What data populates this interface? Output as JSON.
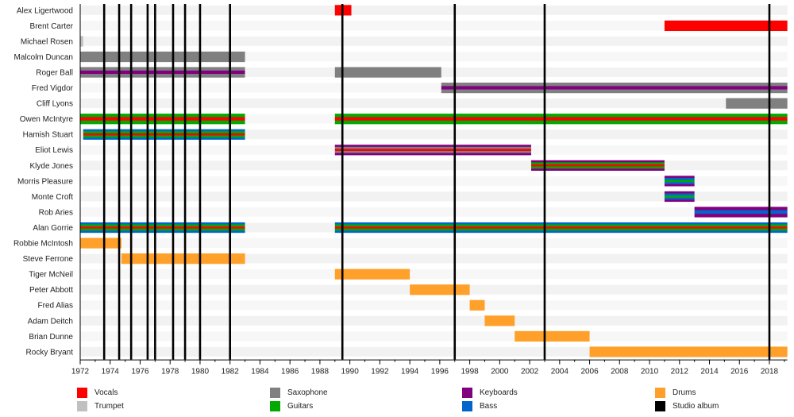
{
  "chart_data": {
    "type": "timeline",
    "title": "",
    "xlabel": "",
    "ylabel": "",
    "xlim": [
      1972,
      2019.2
    ],
    "grid": "alternating row shading",
    "x_ticks": [
      "1972",
      "1974",
      "1976",
      "1978",
      "1980",
      "1982",
      "1984",
      "1986",
      "1988",
      "1990",
      "1992",
      "1994",
      "1996",
      "1998",
      "2000",
      "2002",
      "2004",
      "2006",
      "2008",
      "2010",
      "2012",
      "2014",
      "2016",
      "2018"
    ],
    "x_tick_values": [
      1972,
      1974,
      1976,
      1978,
      1980,
      1982,
      1984,
      1986,
      1988,
      1990,
      1992,
      1994,
      1996,
      1998,
      2000,
      2002,
      2004,
      2006,
      2008,
      2010,
      2012,
      2014,
      2016,
      2018
    ],
    "instruments": {
      "vocals": {
        "label": "Vocals",
        "color": "#ff0000"
      },
      "trumpet": {
        "label": "Trumpet",
        "color": "#c0c0c0"
      },
      "saxophone": {
        "label": "Saxophone",
        "color": "#808080"
      },
      "guitars": {
        "label": "Guitars",
        "color": "#00aa00"
      },
      "keyboards": {
        "label": "Keyboards",
        "color": "#800080"
      },
      "bass": {
        "label": "Bass",
        "color": "#0066cc"
      },
      "drums": {
        "label": "Drums",
        "color": "#ffa02a"
      },
      "album": {
        "label": "Studio album",
        "color": "#000000"
      }
    },
    "legend_order": [
      "vocals",
      "trumpet",
      "saxophone",
      "guitars",
      "keyboards",
      "bass",
      "drums",
      "album"
    ],
    "members": [
      {
        "name": "Alex Ligertwood",
        "spans": [
          {
            "start": 1989.0,
            "end": 1990.1,
            "stripes": [
              "vocals"
            ]
          }
        ]
      },
      {
        "name": "Brent Carter",
        "spans": [
          {
            "start": 2011.0,
            "end": 2019.2,
            "stripes": [
              "vocals"
            ]
          }
        ]
      },
      {
        "name": "Michael Rosen",
        "spans": [
          {
            "start": 1972.0,
            "end": 1972.2,
            "stripes": [
              "trumpet"
            ]
          }
        ]
      },
      {
        "name": "Malcolm Duncan",
        "spans": [
          {
            "start": 1972.0,
            "end": 1983.0,
            "stripes": [
              "saxophone"
            ]
          }
        ]
      },
      {
        "name": "Roger Ball",
        "spans": [
          {
            "start": 1972.0,
            "end": 1983.0,
            "stripes": [
              "saxophone",
              "keyboards",
              "saxophone"
            ]
          },
          {
            "start": 1989.0,
            "end": 1996.1,
            "stripes": [
              "saxophone"
            ]
          }
        ]
      },
      {
        "name": "Fred Vigdor",
        "spans": [
          {
            "start": 1996.1,
            "end": 2019.2,
            "stripes": [
              "saxophone",
              "keyboards",
              "saxophone"
            ]
          }
        ]
      },
      {
        "name": "Cliff Lyons",
        "spans": [
          {
            "start": 2015.1,
            "end": 2019.2,
            "stripes": [
              "saxophone"
            ]
          }
        ]
      },
      {
        "name": "Owen McIntyre",
        "spans": [
          {
            "start": 1972.0,
            "end": 1983.0,
            "stripes": [
              "guitars",
              "vocals",
              "guitars"
            ]
          },
          {
            "start": 1989.0,
            "end": 2019.2,
            "stripes": [
              "guitars",
              "vocals",
              "guitars"
            ]
          }
        ]
      },
      {
        "name": "Hamish Stuart",
        "spans": [
          {
            "start": 1972.2,
            "end": 1983.0,
            "stripes": [
              "bass",
              "guitars",
              "vocals",
              "guitars",
              "bass"
            ]
          }
        ]
      },
      {
        "name": "Eliot Lewis",
        "spans": [
          {
            "start": 1989.0,
            "end": 2002.1,
            "stripes": [
              "keyboards",
              "saxophone",
              "vocals",
              "saxophone",
              "keyboards"
            ]
          }
        ]
      },
      {
        "name": "Klyde Jones",
        "spans": [
          {
            "start": 2002.1,
            "end": 2011.0,
            "stripes": [
              "keyboards",
              "guitars",
              "vocals",
              "guitars",
              "keyboards"
            ]
          }
        ]
      },
      {
        "name": "Morris Pleasure",
        "spans": [
          {
            "start": 2011.0,
            "end": 2013.0,
            "stripes": [
              "keyboards",
              "bass",
              "guitars",
              "bass",
              "keyboards"
            ]
          }
        ]
      },
      {
        "name": "Monte Croft",
        "spans": [
          {
            "start": 2011.0,
            "end": 2013.0,
            "stripes": [
              "keyboards",
              "bass",
              "guitars",
              "bass",
              "keyboards"
            ]
          }
        ]
      },
      {
        "name": "Rob Aries",
        "spans": [
          {
            "start": 2013.0,
            "end": 2019.2,
            "stripes": [
              "keyboards",
              "bass",
              "keyboards"
            ]
          }
        ]
      },
      {
        "name": "Alan Gorrie",
        "spans": [
          {
            "start": 1972.0,
            "end": 1983.0,
            "stripes": [
              "bass",
              "guitars",
              "vocals",
              "guitars",
              "bass"
            ]
          },
          {
            "start": 1989.0,
            "end": 2019.2,
            "stripes": [
              "bass",
              "guitars",
              "vocals",
              "guitars",
              "bass"
            ]
          }
        ]
      },
      {
        "name": "Robbie McIntosh",
        "spans": [
          {
            "start": 1972.0,
            "end": 1974.75,
            "stripes": [
              "drums"
            ]
          }
        ]
      },
      {
        "name": "Steve Ferrone",
        "spans": [
          {
            "start": 1974.75,
            "end": 1983.0,
            "stripes": [
              "drums"
            ]
          }
        ]
      },
      {
        "name": "Tiger McNeil",
        "spans": [
          {
            "start": 1989.0,
            "end": 1994.0,
            "stripes": [
              "drums"
            ]
          }
        ]
      },
      {
        "name": "Peter Abbott",
        "spans": [
          {
            "start": 1994.0,
            "end": 1998.0,
            "stripes": [
              "drums"
            ]
          }
        ]
      },
      {
        "name": "Fred Alias",
        "spans": [
          {
            "start": 1998.0,
            "end": 1999.0,
            "stripes": [
              "drums"
            ]
          }
        ]
      },
      {
        "name": "Adam Deitch",
        "spans": [
          {
            "start": 1999.0,
            "end": 2001.0,
            "stripes": [
              "drums"
            ]
          }
        ]
      },
      {
        "name": "Brian Dunne",
        "spans": [
          {
            "start": 2001.0,
            "end": 2006.0,
            "stripes": [
              "drums"
            ]
          }
        ]
      },
      {
        "name": "Rocky Bryant",
        "spans": [
          {
            "start": 2006.0,
            "end": 2019.2,
            "stripes": [
              "drums"
            ]
          }
        ]
      }
    ],
    "studio_albums": [
      1973.6,
      1974.6,
      1975.4,
      1976.5,
      1977.0,
      1978.2,
      1979.0,
      1980.0,
      1982.0,
      1989.5,
      1997.0,
      2003.0,
      2018.0
    ]
  }
}
